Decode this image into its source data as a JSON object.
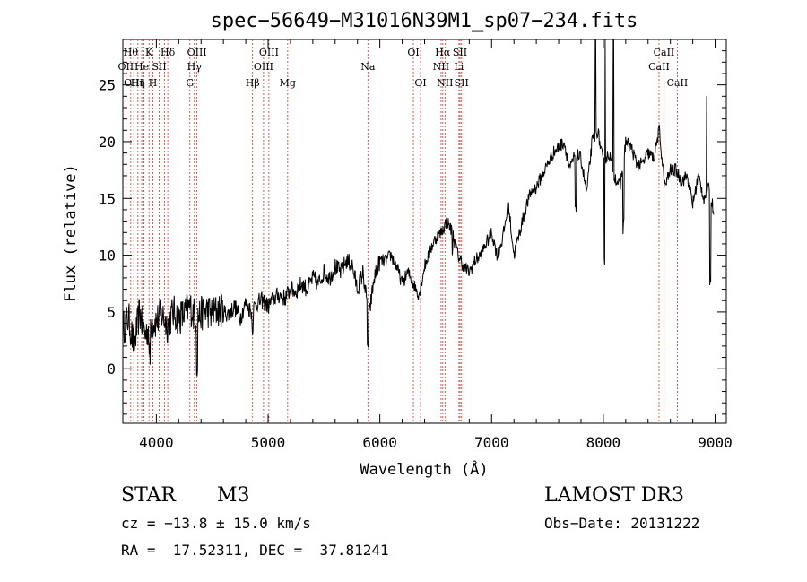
{
  "chart_data": {
    "type": "line",
    "title": "spec−56649−M31016N39M1_sp07−234.fits",
    "xlabel": "Wavelength (Å)",
    "ylabel": "Flux (relative)",
    "xlim": [
      3700,
      9100
    ],
    "ylim": [
      -4.8,
      29.0
    ],
    "xticks": [
      4000,
      5000,
      6000,
      7000,
      8000,
      9000
    ],
    "yticks": [
      0,
      5,
      10,
      15,
      20,
      25
    ],
    "series": [
      {
        "name": "spectrum",
        "x": [
          3700,
          3750,
          3800,
          3850,
          3900,
          3950,
          4000,
          4050,
          4100,
          4150,
          4200,
          4250,
          4300,
          4350,
          4400,
          4450,
          4500,
          4550,
          4600,
          4650,
          4700,
          4750,
          4800,
          4850,
          4900,
          4950,
          5000,
          5050,
          5100,
          5150,
          5200,
          5250,
          5300,
          5350,
          5400,
          5450,
          5500,
          5550,
          5600,
          5650,
          5700,
          5750,
          5800,
          5850,
          5900,
          5950,
          6000,
          6050,
          6100,
          6150,
          6200,
          6250,
          6300,
          6350,
          6400,
          6450,
          6500,
          6550,
          6600,
          6650,
          6700,
          6750,
          6800,
          6850,
          6900,
          6950,
          7000,
          7050,
          7100,
          7150,
          7200,
          7250,
          7300,
          7350,
          7400,
          7450,
          7500,
          7550,
          7600,
          7650,
          7700,
          7750,
          7800,
          7850,
          7900,
          7950,
          8000,
          8050,
          8100,
          8150,
          8200,
          8250,
          8300,
          8350,
          8400,
          8450,
          8500,
          8550,
          8600,
          8650,
          8700,
          8750,
          8800,
          8850,
          8900,
          8950,
          9000
        ],
        "y": [
          3.5,
          4.5,
          2.0,
          5.0,
          3.0,
          4.0,
          4.2,
          4.8,
          3.8,
          5.0,
          4.5,
          4.8,
          5.5,
          4.5,
          4.8,
          5.2,
          4.8,
          5.2,
          5.0,
          4.8,
          5.5,
          4.5,
          5.8,
          5.0,
          5.8,
          6.0,
          5.5,
          6.2,
          6.5,
          6.2,
          7.0,
          6.8,
          7.5,
          7.0,
          8.0,
          7.5,
          8.5,
          8.0,
          9.0,
          8.5,
          9.5,
          9.2,
          7.0,
          8.5,
          4.5,
          8.0,
          9.5,
          9.5,
          10.0,
          9.0,
          7.5,
          8.5,
          7.5,
          6.5,
          9.0,
          10.5,
          11.5,
          12.0,
          13.0,
          12.0,
          10.0,
          9.0,
          8.5,
          9.5,
          10.0,
          11.0,
          12.0,
          10.0,
          11.5,
          14.5,
          10.0,
          12.0,
          14.0,
          15.5,
          16.0,
          17.0,
          18.0,
          19.0,
          19.5,
          20.0,
          17.5,
          19.0,
          18.5,
          15.5,
          20.0,
          21.0,
          18.0,
          19.0,
          17.0,
          16.0,
          20.0,
          19.5,
          18.0,
          18.0,
          19.0,
          18.5,
          21.0,
          16.0,
          17.5,
          17.5,
          16.5,
          17.0,
          14.5,
          17.0,
          15.0,
          16.0,
          13.0
        ]
      }
    ],
    "features": {
      "notes": "Strong downward dips near 3940, 4360, 4860, 5890, 6650, 7750, 8020, 8180 Å; spikes near 7930, 8010, 8090 Å"
    },
    "lines": [
      {
        "wl": 3727,
        "label": "OII",
        "row": 2
      },
      {
        "wl": 3771,
        "label": "Hθ",
        "row": 1
      },
      {
        "wl": 3798,
        "label": "OIII",
        "row": 3
      },
      {
        "wl": 3835,
        "label": "Hη",
        "row": 3
      },
      {
        "wl": 3869,
        "label": "He",
        "row": 2
      },
      {
        "wl": 3889,
        "label": "",
        "row": 0
      },
      {
        "wl": 3934,
        "label": "K",
        "row": 1
      },
      {
        "wl": 3969,
        "label": "H",
        "row": 3
      },
      {
        "wl": 4026,
        "label": "SII",
        "row": 2
      },
      {
        "wl": 4072,
        "label": "",
        "row": 0
      },
      {
        "wl": 4102,
        "label": "Hδ",
        "row": 1
      },
      {
        "wl": 4300,
        "label": "G",
        "row": 3
      },
      {
        "wl": 4340,
        "label": "Hγ",
        "row": 2
      },
      {
        "wl": 4363,
        "label": "OIII",
        "row": 1
      },
      {
        "wl": 4861,
        "label": "Hβ",
        "row": 3
      },
      {
        "wl": 4959,
        "label": "OIII",
        "row": 2
      },
      {
        "wl": 5007,
        "label": "OIII",
        "row": 1
      },
      {
        "wl": 5175,
        "label": "Mg",
        "row": 3
      },
      {
        "wl": 5893,
        "label": "Na",
        "row": 2
      },
      {
        "wl": 6300,
        "label": "OI",
        "row": 1
      },
      {
        "wl": 6364,
        "label": "OI",
        "row": 3
      },
      {
        "wl": 6548,
        "label": "NII",
        "row": 2
      },
      {
        "wl": 6563,
        "label": "Hα",
        "row": 1
      },
      {
        "wl": 6583,
        "label": "NII",
        "row": 3
      },
      {
        "wl": 6708,
        "label": "Li",
        "row": 2
      },
      {
        "wl": 6717,
        "label": "SII",
        "row": 1
      },
      {
        "wl": 6731,
        "label": "SII",
        "row": 3
      },
      {
        "wl": 8498,
        "label": "CaII",
        "row": 2
      },
      {
        "wl": 8542,
        "label": "CaII",
        "row": 1
      },
      {
        "wl": 8662,
        "label": "CaII",
        "row": 3
      }
    ]
  },
  "info": {
    "object_class": "STAR",
    "subclass": "M3",
    "survey": "LAMOST DR3",
    "cz": "cz = −13.8 ± 15.0 km/s",
    "obs_date": "Obs−Date: 20131222",
    "coords": "RA =  17.52311, DEC =  37.81241"
  },
  "colors": {
    "line_marker": "#c0392b",
    "spectrum": "#000000"
  }
}
